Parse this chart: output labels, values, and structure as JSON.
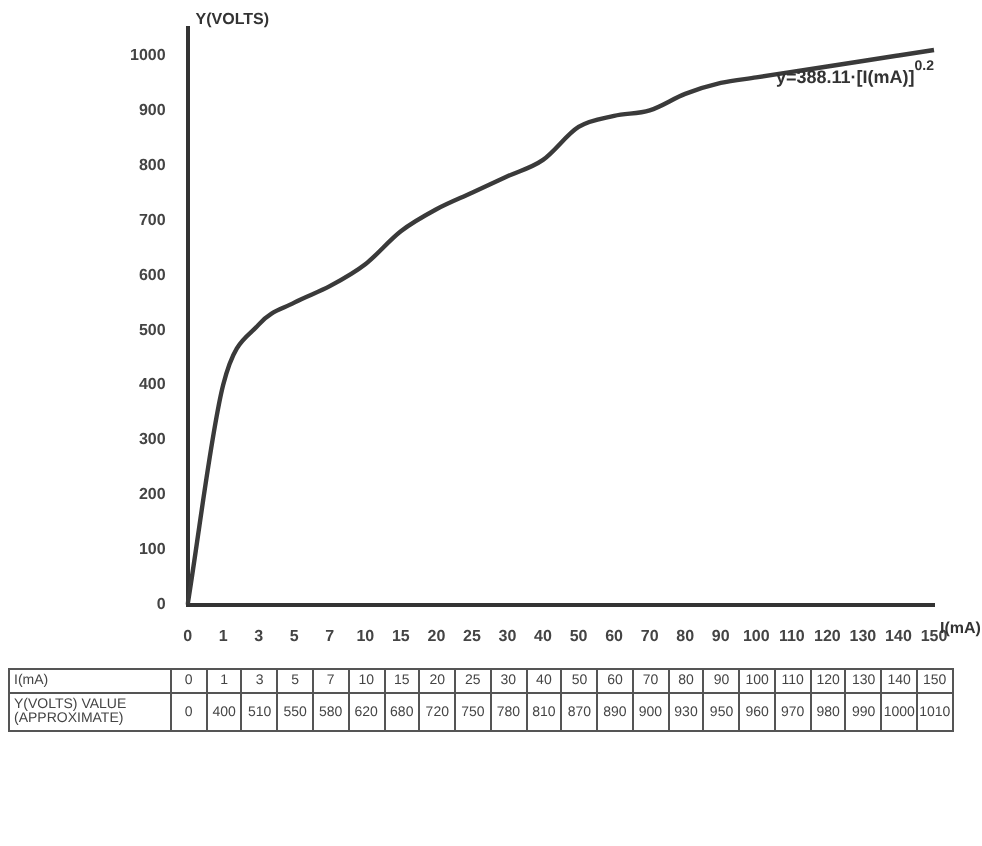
{
  "chart_data": {
    "type": "line",
    "xlabel": "I(mA)",
    "ylabel": "Y(VOLTS)",
    "categories": [
      "0",
      "1",
      "3",
      "5",
      "7",
      "10",
      "15",
      "20",
      "25",
      "30",
      "40",
      "50",
      "60",
      "70",
      "80",
      "90",
      "100",
      "110",
      "120",
      "130",
      "140",
      "150"
    ],
    "series": [
      {
        "color": "#3a3a3a",
        "values": [
          0,
          400,
          510,
          550,
          580,
          620,
          680,
          720,
          750,
          780,
          810,
          870,
          890,
          900,
          930,
          950,
          960,
          970,
          980,
          990,
          1000,
          1010
        ],
        "value_labels": [
          "0",
          "400",
          "510",
          "550",
          "580",
          "620",
          "680",
          "720",
          "750",
          "780",
          "810",
          "870",
          "890",
          "900",
          "930",
          "950",
          "960",
          "970",
          "980",
          "990",
          "1000",
          "1010"
        ]
      }
    ],
    "ylim": [
      0,
      1050
    ],
    "yticks": [
      0,
      100,
      200,
      300,
      400,
      500,
      600,
      700,
      800,
      900,
      1000
    ],
    "grid": false,
    "legend": false,
    "marker": "none",
    "line_style": "solid",
    "annotations": [
      {
        "text": "y=388.11·[I(mA)]$^{0.2}$",
        "x": "150",
        "y": 1010
      },
      "Y(VOLTS) VALUE (APPROXIMATE)"
    ]
  }
}
